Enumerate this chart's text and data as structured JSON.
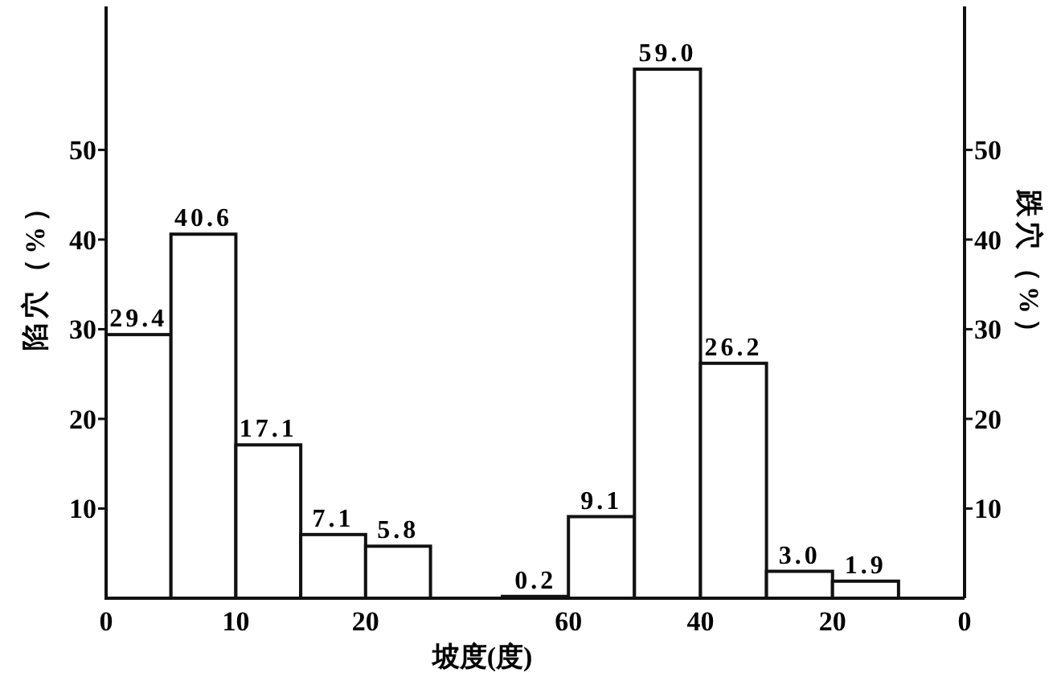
{
  "chart_data": [
    {
      "type": "histogram",
      "xlabel": "坡度(度)",
      "ylabel": "陷穴（%）",
      "bins": [
        0,
        5,
        10,
        15,
        20,
        25
      ],
      "values": [
        29.4,
        40.6,
        17.1,
        7.1,
        5.8
      ],
      "value_labels": [
        "29.4",
        "40.6",
        "17.1",
        "7.1",
        "5.8"
      ],
      "xlim": [
        0,
        28
      ],
      "xticks": [
        0,
        10,
        20
      ],
      "ylim": [
        0,
        66
      ],
      "yticks": [
        10,
        20,
        30,
        40,
        50
      ]
    },
    {
      "type": "histogram",
      "y2label": "跌穴（%）",
      "bins": [
        70,
        60,
        50,
        40,
        30,
        20,
        10
      ],
      "series": [
        {
          "axis": "y2",
          "values": [
            0.2,
            9.1,
            59.0,
            26.2,
            3.0,
            1.9
          ],
          "value_labels": [
            "0.2",
            "9.1",
            "59.0",
            "26.2",
            "3.0",
            "1.9"
          ]
        }
      ],
      "xlim": [
        75,
        0
      ],
      "xticks": [
        60,
        40,
        20,
        0
      ],
      "y2lim": [
        0,
        66
      ],
      "y2ticks": [
        10,
        20,
        30,
        40,
        50
      ]
    }
  ]
}
